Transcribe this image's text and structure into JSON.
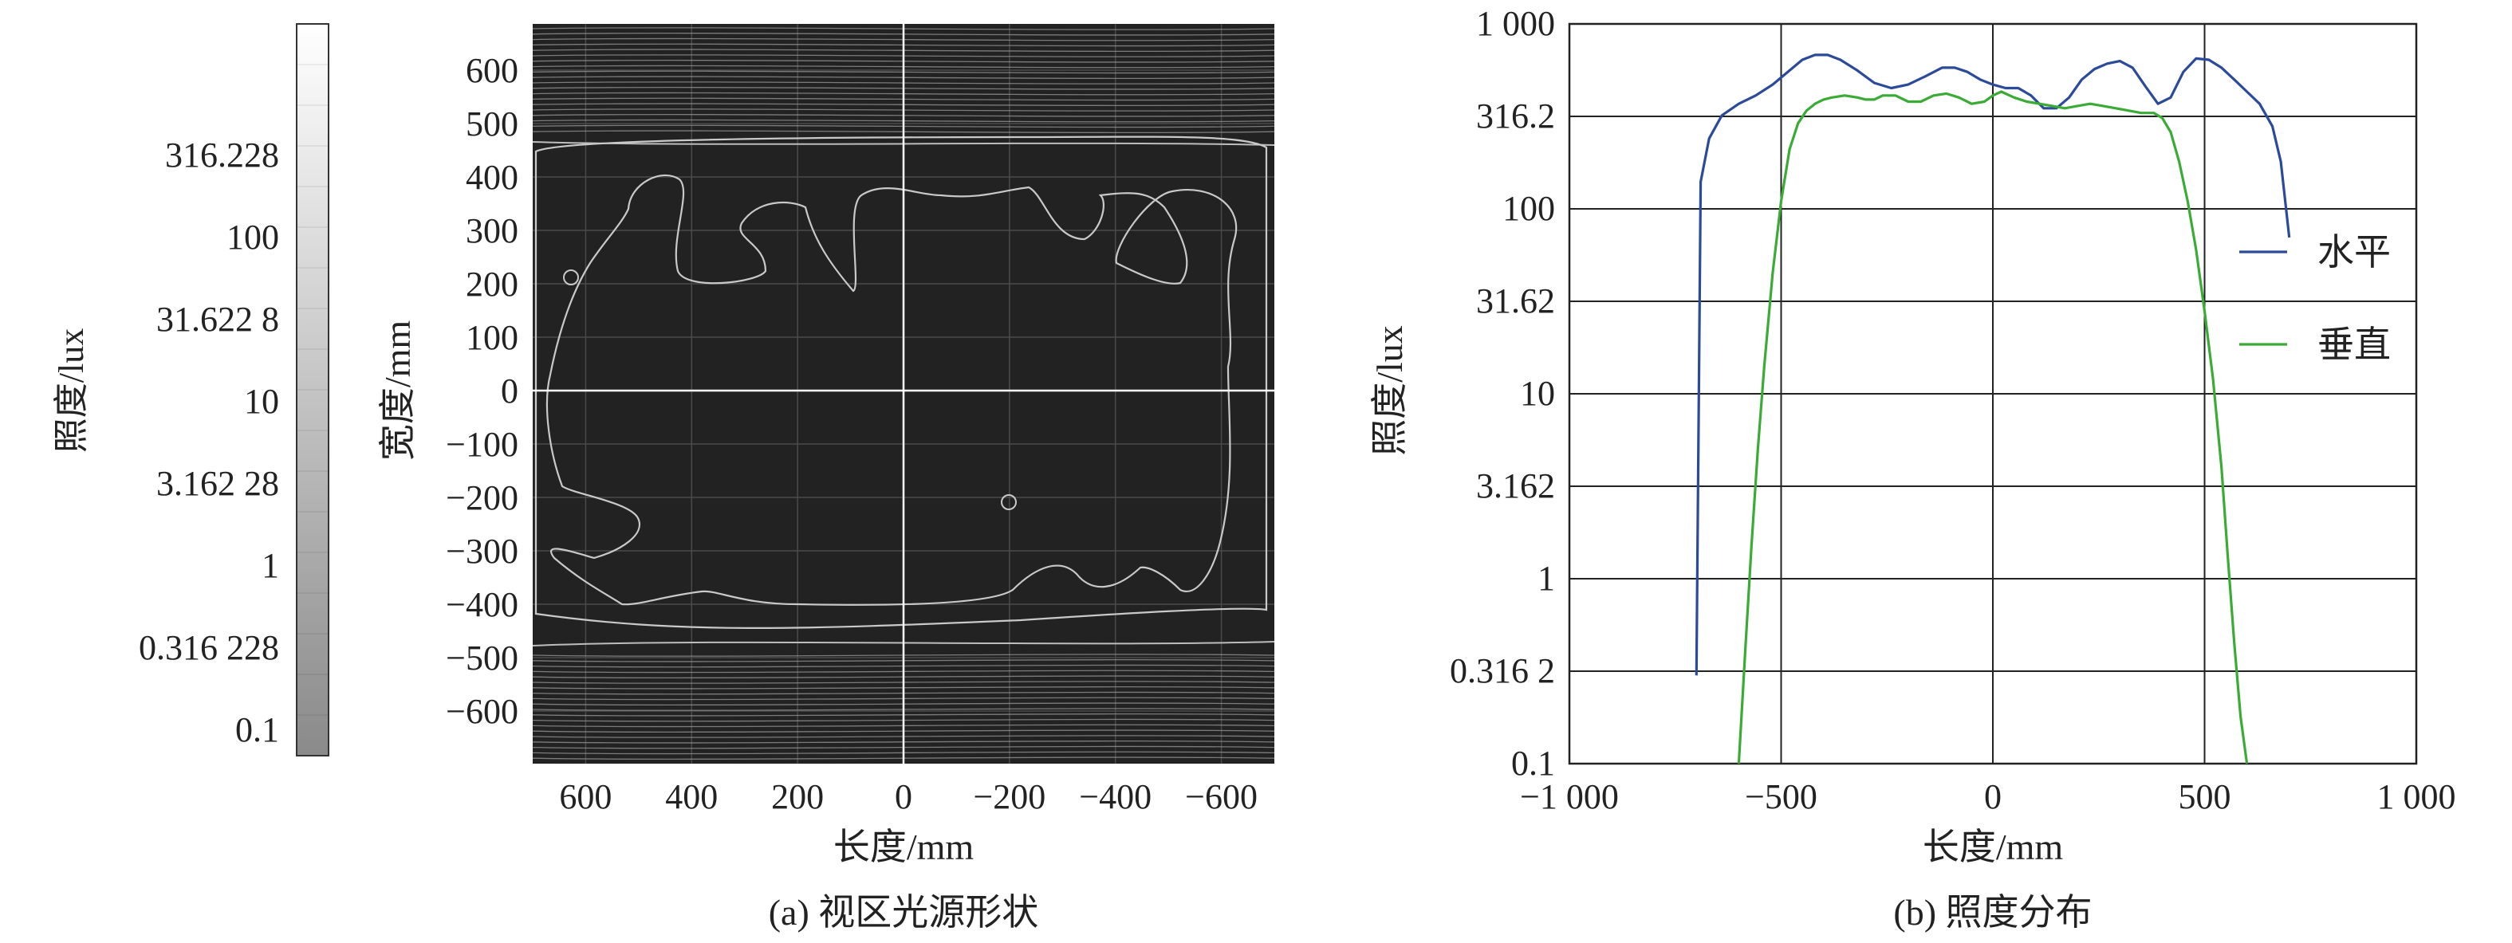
{
  "colorbar": {
    "ylabel": "照度/lux",
    "tick_labels": [
      "316.228",
      "100",
      "31.622 8",
      "10",
      "3.162 28",
      "1",
      "0.316 228",
      "0.1"
    ],
    "scale": "log",
    "range": [
      0.1,
      1000
    ]
  },
  "panel_a": {
    "caption": "(a) 视区光源形状",
    "xlabel": "长度/mm",
    "ylabel": "宽度/mm",
    "x_tick_labels": [
      "600",
      "400",
      "200",
      "0",
      "−200",
      "−400",
      "−600"
    ],
    "y_tick_labels": [
      "600",
      "500",
      "400",
      "300",
      "200",
      "100",
      "0",
      "−100",
      "−200",
      "−300",
      "−400",
      "−500",
      "−600"
    ],
    "colors": {
      "background": "#222222",
      "contour": "#c9c9c9"
    }
  },
  "panel_b": {
    "caption": "(b) 照度分布",
    "xlabel": "长度/mm",
    "ylabel": "照度/lux",
    "x_tick_labels": [
      "−1 000",
      "−500",
      "0",
      "500",
      "1 000"
    ],
    "y_tick_labels": [
      "1 000",
      "316.2",
      "100",
      "31.62",
      "10",
      "3.162",
      "1",
      "0.316 2",
      "0.1"
    ],
    "legend": [
      "水平",
      "垂直"
    ]
  },
  "chart_data": {
    "type": "line",
    "x_scale": "linear",
    "y_scale": "log",
    "xlim": [
      -1000,
      1000
    ],
    "ylim": [
      0.1,
      1000
    ],
    "grid": true,
    "legend_position": "right",
    "series": [
      {
        "name": "水平",
        "color": "#2b4a9a",
        "x": [
          -700,
          -690,
          -670,
          -640,
          -600,
          -560,
          -520,
          -480,
          -450,
          -420,
          -390,
          -360,
          -320,
          -280,
          -240,
          -200,
          -160,
          -120,
          -90,
          -60,
          -30,
          0,
          30,
          60,
          90,
          120,
          150,
          180,
          210,
          240,
          270,
          300,
          330,
          360,
          390,
          420,
          450,
          480,
          510,
          540,
          570,
          600,
          630,
          660,
          680,
          700
        ],
        "y": [
          0.3,
          140,
          240,
          320,
          370,
          410,
          470,
          560,
          640,
          680,
          680,
          640,
          560,
          480,
          450,
          470,
          520,
          580,
          580,
          550,
          500,
          470,
          450,
          450,
          410,
          350,
          350,
          400,
          500,
          570,
          610,
          630,
          580,
          460,
          370,
          400,
          550,
          650,
          640,
          580,
          500,
          430,
          370,
          280,
          180,
          70
        ]
      },
      {
        "name": "垂直",
        "color": "#3aab35",
        "x": [
          -600,
          -585,
          -570,
          -555,
          -540,
          -520,
          -500,
          -480,
          -460,
          -440,
          -420,
          -400,
          -380,
          -350,
          -320,
          -300,
          -280,
          -260,
          -230,
          -200,
          -170,
          -140,
          -110,
          -80,
          -50,
          -20,
          0,
          20,
          50,
          80,
          110,
          140,
          170,
          200,
          230,
          260,
          290,
          320,
          350,
          380,
          400,
          420,
          440,
          460,
          480,
          500,
          520,
          540,
          555,
          570,
          585,
          600
        ],
        "y": [
          0.1,
          0.4,
          1.5,
          5,
          14,
          45,
          110,
          210,
          290,
          340,
          370,
          390,
          400,
          410,
          400,
          390,
          390,
          410,
          410,
          380,
          380,
          410,
          420,
          400,
          370,
          380,
          410,
          430,
          400,
          380,
          370,
          360,
          350,
          360,
          370,
          360,
          350,
          340,
          330,
          330,
          310,
          260,
          180,
          110,
          60,
          28,
          12,
          4,
          1.3,
          0.45,
          0.18,
          0.1
        ]
      }
    ]
  }
}
